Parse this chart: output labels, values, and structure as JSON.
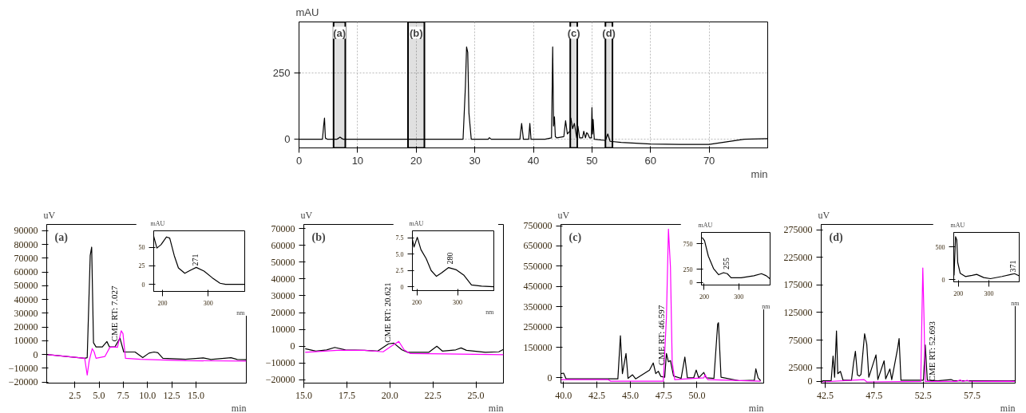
{
  "chart_data": [
    {
      "type": "line",
      "xlabel": "min",
      "ylabel": "mAU",
      "xlim": [
        0,
        80
      ],
      "ylim": [
        -33,
        445
      ],
      "xticks": [
        0,
        10,
        20,
        30,
        40,
        50,
        60,
        70
      ],
      "yticks": [
        0,
        250
      ],
      "grid": true,
      "series": [
        {
          "color": "#000000",
          "x": [
            0,
            4.0,
            4.2,
            4.35,
            4.5,
            4.8,
            6.5,
            7.0,
            7.5,
            10,
            20,
            28,
            28.4,
            28.6,
            28.8,
            29.0,
            29.4,
            32.3,
            32.5,
            32.8,
            37.7,
            38.0,
            38.3,
            39.2,
            39.4,
            39.6,
            42,
            43.1,
            43.3,
            43.45,
            43.6,
            43.75,
            44.0,
            45.2,
            45.5,
            45.8,
            46.2,
            46.4,
            46.7,
            47.0,
            47.4,
            47.6,
            47.9,
            48.4,
            48.6,
            48.9,
            49.1,
            49.3,
            49.6,
            49.9,
            50.0,
            50.1,
            50.2,
            50.4,
            52.3,
            52.7,
            53.1,
            55,
            60,
            65,
            70,
            73,
            76,
            80
          ],
          "values": [
            0,
            0,
            50,
            80,
            5,
            0,
            0,
            8,
            0,
            0,
            0,
            0,
            200,
            350,
            330,
            100,
            0,
            0,
            6,
            0,
            0,
            60,
            0,
            0,
            60,
            0,
            0,
            5,
            350,
            50,
            85,
            10,
            5,
            10,
            70,
            20,
            30,
            80,
            40,
            60,
            5,
            50,
            5,
            5,
            30,
            5,
            25,
            20,
            5,
            5,
            120,
            20,
            75,
            0,
            -5,
            20,
            -8,
            -12,
            -18,
            -20,
            -20,
            -10,
            0,
            2
          ]
        }
      ],
      "bands": [
        {
          "axis": "x",
          "from": 5.9,
          "to": 7.9,
          "label": "(a)"
        },
        {
          "axis": "x",
          "from": 18.6,
          "to": 21.4,
          "label": "(b)"
        },
        {
          "axis": "x",
          "from": 46.3,
          "to": 47.5,
          "label": "(c)"
        },
        {
          "axis": "x",
          "from": 52.3,
          "to": 53.5,
          "label": "(d)"
        }
      ]
    },
    {
      "type": "line",
      "title": "(a)",
      "xlabel": "min",
      "ylabel": "uV",
      "xlim": [
        -0.4,
        20.2
      ],
      "ylim": [
        -20800,
        94500
      ],
      "xticks": [
        2.5,
        {
          "value": 5,
          "label": "5.0"
        },
        7.5,
        {
          "value": 10,
          "label": "10.0"
        },
        12.5,
        {
          "value": 15,
          "label": "15.0"
        }
      ],
      "yticks": [
        -20000,
        -10000,
        0,
        10000,
        20000,
        30000,
        40000,
        50000,
        60000,
        70000,
        80000,
        90000
      ],
      "series": [
        {
          "color": "#000000",
          "x": [
            -0.4,
            3.52,
            3.78,
            4.09,
            4.24,
            4.43,
            4.69,
            5.34,
            5.81,
            6.07,
            6.64,
            7.16,
            7.55,
            8.72,
            9.51,
            10.16,
            10.68,
            11.07,
            11.59,
            13.93,
            15.76,
            16.54,
            18.62,
            19.27,
            20.18
          ],
          "values": [
            0,
            -2800,
            -2300,
            72000,
            78000,
            8500,
            5500,
            5500,
            9400,
            5500,
            5500,
            11900,
            1800,
            1800,
            -2300,
            1000,
            1800,
            1300,
            -2800,
            -3500,
            -2500,
            -3600,
            -2300,
            -3600,
            -3800
          ]
        },
        {
          "color": "#ff00ff",
          "x": [
            -0.4,
            3.52,
            3.78,
            3.98,
            4.3,
            4.5,
            4.69,
            5.6,
            6.12,
            6.64,
            6.9,
            7.29,
            7.47,
            7.73,
            9.24,
            13.93,
            20.18
          ],
          "values": [
            0,
            -2800,
            -15000,
            -4800,
            4300,
            1800,
            -2800,
            -1500,
            5200,
            5500,
            5200,
            17200,
            15200,
            -2800,
            -3500,
            -4500,
            -4800
          ]
        }
      ],
      "annotations": [
        {
          "text": "CME RT: 7.027",
          "x": 6.6,
          "y": 9400
        }
      ]
    },
    {
      "type": "line",
      "xlabel": "nm",
      "ylabel": "mAU",
      "xlim": [
        181,
        380
      ],
      "ylim": [
        -9.5,
        72.3
      ],
      "xticks": [
        200,
        300
      ],
      "yticks": [
        0,
        25,
        50
      ],
      "series": [
        {
          "color": "#000000",
          "x": [
            181,
            188,
            197,
            209,
            216,
            226,
            235,
            249,
            262,
            274,
            291,
            309,
            326,
            338,
            380
          ],
          "values": [
            65,
            49,
            53.6,
            64,
            62.5,
            38.7,
            22.3,
            14.9,
            19.3,
            22.9,
            17.9,
            8.9,
            1.5,
            0,
            0
          ]
        }
      ],
      "annotations": [
        {
          "text": "271",
          "x": 271,
          "y": 25
        }
      ]
    },
    {
      "type": "line",
      "title": "(b)",
      "xlabel": "min",
      "ylabel": "uV",
      "xlim": [
        15,
        26.6
      ],
      "ylim": [
        -21900,
        72400
      ],
      "xticks": [
        {
          "value": 15,
          "label": "15.0"
        },
        17.5,
        {
          "value": 20,
          "label": "20.0"
        },
        22.5,
        {
          "value": 25,
          "label": "25.0"
        }
      ],
      "yticks": [
        -20000,
        -10000,
        0,
        10000,
        20000,
        30000,
        40000,
        50000,
        60000,
        70000
      ],
      "series": [
        {
          "color": "#000000",
          "x": [
            15.08,
            15.7,
            16.33,
            16.8,
            17.42,
            18.52,
            19.3,
            19.92,
            20.23,
            20.7,
            21.02,
            22.27,
            22.73,
            23.05,
            23.83,
            24.14,
            24.45,
            25.55,
            26.33,
            26.6
          ],
          "values": [
            -1430,
            -2860,
            -2140,
            -710,
            -2140,
            -2430,
            -2860,
            1430,
            1860,
            -2140,
            -3570,
            -3570,
            0,
            -2860,
            -2140,
            -1000,
            -2430,
            -3570,
            -3290,
            -1860
          ]
        },
        {
          "color": "#ff00ff",
          "x": [
            15.08,
            16.95,
            18.52,
            19.61,
            20.08,
            20.52,
            20.83,
            21.17,
            23.2,
            26.6
          ],
          "values": [
            -3570,
            -2430,
            -2430,
            -3290,
            0,
            2860,
            -2140,
            -4290,
            -4570,
            -5000
          ]
        }
      ],
      "annotations": [
        {
          "text": "CME RT: 20.621",
          "x": 19.84,
          "y": 2140
        }
      ]
    },
    {
      "type": "line",
      "xlabel": "nm",
      "ylabel": "mAU",
      "xlim": [
        189,
        389
      ],
      "ylim": [
        -0.6,
        8.6
      ],
      "xticks": [
        200,
        300
      ],
      "yticks": [
        0,
        2.5,
        {
          "value": 5,
          "label": "5.0"
        },
        7.5
      ],
      "series": [
        {
          "color": "#000000",
          "x": [
            189,
            193,
            201,
            210,
            223,
            235,
            248,
            260,
            278,
            297,
            315,
            334,
            359,
            389
          ],
          "values": [
            7.3,
            6.1,
            7.6,
            5.7,
            4.3,
            2.5,
            1.6,
            2.1,
            2.95,
            2.6,
            1.8,
            0.27,
            0.1,
            0
          ]
        }
      ],
      "annotations": [
        {
          "text": "280",
          "x": 282,
          "y": 3.46
        }
      ]
    },
    {
      "type": "line",
      "title": "(c)",
      "xlabel": "min",
      "ylabel": "uV",
      "xlim": [
        39.8,
        55
      ],
      "ylim": [
        -25700,
        756000
      ],
      "xticks": [
        {
          "value": 40,
          "label": "40.0"
        },
        42.5,
        {
          "value": 45,
          "label": "45.0"
        },
        47.5,
        {
          "value": 50,
          "label": "50.0"
        }
      ],
      "yticks": [
        0,
        150000,
        250000,
        350000,
        450000,
        550000,
        650000,
        750000
      ],
      "series": [
        {
          "color": "#000000",
          "x": [
            39.81,
            40.0,
            40.19,
            42.37,
            44.07,
            44.26,
            44.41,
            44.68,
            44.83,
            45.17,
            45.4,
            46.44,
            46.72,
            46.91,
            47.1,
            47.29,
            47.58,
            47.71,
            47.86,
            48.01,
            48.24,
            48.81,
            49.09,
            49.28,
            49.75,
            49.94,
            50.13,
            50.51,
            50.7,
            51.27,
            51.55,
            51.61,
            51.8,
            53.16,
            54.3,
            54.41,
            54.58,
            54.77
          ],
          "values": [
            21000,
            23300,
            -4700,
            -4700,
            -4700,
            207700,
            21000,
            120200,
            -2300,
            15200,
            -4700,
            38500,
            73500,
            21000,
            32700,
            7000,
            3500,
            120200,
            79300,
            85200,
            9300,
            -2300,
            102700,
            0,
            0,
            38500,
            0,
            26800,
            0,
            -2300,
            266000,
            271900,
            3500,
            -14000,
            -11700,
            44300,
            0,
            -14000
          ]
        },
        {
          "color": "#ff00ff",
          "x": [
            39.81,
            43.31,
            43.54,
            47.48,
            47.71,
            47.86,
            48.01,
            48.14,
            48.33,
            50.51,
            50.61,
            50.8,
            54.77
          ],
          "values": [
            -8200,
            -8200,
            -16300,
            -16300,
            301000,
            732800,
            546100,
            79300,
            -8200,
            0,
            15200,
            -8200,
            -16300
          ]
        }
      ],
      "annotations": [
        {
          "text": "CME RT: 46.597",
          "x": 47.33,
          "y": 61800
        }
      ]
    },
    {
      "type": "line",
      "xlabel": "nm",
      "ylabel": "mAU",
      "xlim": [
        192,
        391
      ],
      "ylim": [
        -52,
        968
      ],
      "xticks": [
        200,
        300
      ],
      "yticks": [
        0,
        250,
        750
      ],
      "series": [
        {
          "color": "#000000",
          "x": [
            194,
            201,
            212,
            227,
            242,
            256,
            267,
            278,
            307,
            344,
            366,
            380,
            391
          ],
          "values": [
            868,
            808,
            508,
            268,
            148,
            188,
            168,
            88,
            88,
            128,
            168,
            128,
            68
          ]
        }
      ],
      "annotations": [
        {
          "text": "255",
          "x": 263,
          "y": 248
        }
      ]
    },
    {
      "type": "line",
      "title": "(d)",
      "xlabel": "min",
      "ylabel": "uV",
      "xlim": [
        42.1,
        61.9
      ],
      "ylim": [
        -3000,
        284800
      ],
      "xticks": [
        42.5,
        47.5,
        52.5,
        57.5
      ],
      "yticks": [
        0,
        25000,
        75000,
        125000,
        175000,
        225000,
        275000
      ],
      "series": [
        {
          "color": "#000000",
          "x": [
            42.18,
            43.12,
            43.31,
            43.47,
            43.66,
            43.79,
            44.06,
            44.33,
            45.19,
            45.4,
            45.59,
            45.8,
            46.0,
            46.16,
            46.53,
            46.75,
            46.96,
            47.69,
            47.88,
            48.52,
            48.68,
            49.11,
            49.3,
            49.92,
            50.05,
            50.24,
            52.53,
            52.72,
            52.93,
            54.0,
            55.35,
            55.62,
            61.9
          ],
          "values": [
            1280,
            1280,
            46100,
            7700,
            91700,
            14100,
            18300,
            2100,
            2100,
            33300,
            54600,
            11900,
            9800,
            12800,
            86600,
            67400,
            7700,
            48200,
            3400,
            37500,
            4700,
            22600,
            3400,
            61800,
            78000,
            2100,
            2100,
            66100,
            2100,
            1280,
            3400,
            1280,
            1280
          ]
        },
        {
          "color": "#ff00ff",
          "x": [
            42.18,
            46.48,
            46.75,
            52.26,
            52.39,
            52.47,
            52.58,
            52.72,
            55.91,
            56.29,
            56.56,
            57.0,
            57.27,
            61.26,
            61.9
          ],
          "values": [
            -850,
            3400,
            -850,
            0,
            129200,
            206000,
            124900,
            0,
            0,
            2600,
            0,
            2100,
            0,
            400,
            0
          ]
        }
      ],
      "annotations": [
        {
          "text": "CME RT: 52.693",
          "x": 52.72,
          "y": 0
        }
      ]
    },
    {
      "type": "line",
      "xlabel": "nm",
      "ylabel": "mAU",
      "xlim": [
        185,
        399
      ],
      "ylim": [
        -33,
        724
      ],
      "xticks": [
        200,
        300
      ],
      "yticks": [
        0,
        500
      ],
      "series": [
        {
          "color": "#000000",
          "x": [
            186,
            191,
            195,
            198,
            206,
            223,
            245,
            260,
            283,
            305,
            343,
            373,
            384,
            399
          ],
          "values": [
            66,
            658,
            608,
            263,
            99,
            49,
            66,
            82,
            33,
            16,
            49,
            82,
            92,
            59
          ]
        }
      ],
      "annotations": [
        {
          "text": "371",
          "x": 377,
          "y": 115
        }
      ]
    }
  ]
}
